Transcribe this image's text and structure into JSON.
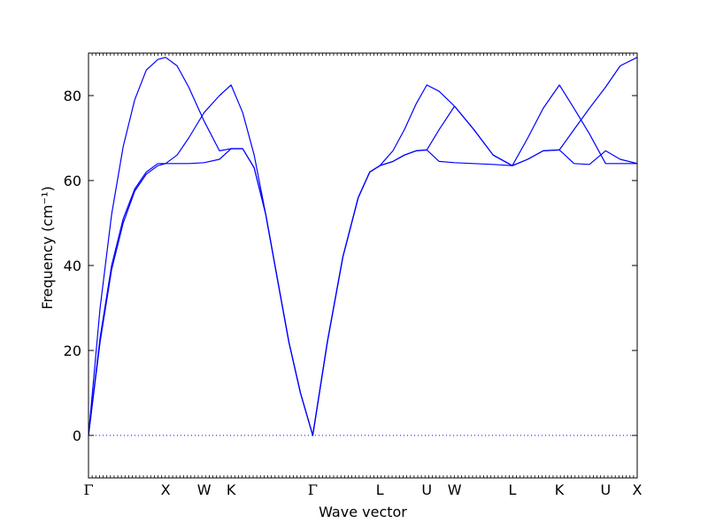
{
  "chart_data": {
    "type": "line",
    "title": "",
    "xlabel": "Wave vector",
    "ylabel": "Frequency (cm⁻¹)",
    "ylim": [
      -10,
      90
    ],
    "yticks": [
      0,
      20,
      40,
      60,
      80
    ],
    "grid": false,
    "legend": "none",
    "line_color": "#0000ff",
    "zero_line": {
      "y": 0,
      "style": "dotted",
      "color": "#0000ff"
    },
    "x_range": [
      0,
      7.12
    ],
    "high_symmetry_points": [
      {
        "label": "Γ",
        "x": 0.0
      },
      {
        "label": "X",
        "x": 1.0
      },
      {
        "label": "W",
        "x": 1.5
      },
      {
        "label": "K",
        "x": 1.85
      },
      {
        "label": "Γ",
        "x": 2.91
      },
      {
        "label": "L",
        "x": 3.78
      },
      {
        "label": "U",
        "x": 4.39
      },
      {
        "label": "W",
        "x": 4.75
      },
      {
        "label": "L",
        "x": 5.5
      },
      {
        "label": "K",
        "x": 6.11
      },
      {
        "label": "U",
        "x": 6.71
      },
      {
        "label": "X",
        "x": 7.12
      }
    ],
    "series": [
      {
        "x": [
          0,
          0.15,
          0.3,
          0.45,
          0.6,
          0.75,
          0.9,
          1.0,
          1.15,
          1.3,
          1.5,
          1.7,
          1.85,
          2.0,
          2.15,
          2.3,
          2.45,
          2.6,
          2.75,
          2.91,
          3.1,
          3.3,
          3.5,
          3.65,
          3.78,
          3.95,
          4.1,
          4.25,
          4.39,
          4.55,
          4.75,
          5.0,
          5.25,
          5.5,
          5.7,
          5.9,
          6.11,
          6.3,
          6.5,
          6.71,
          6.9,
          7.12
        ],
        "y": [
          0,
          30,
          52,
          68,
          79,
          86,
          88.5,
          89,
          87,
          82,
          74,
          67,
          67.5,
          67.5,
          63,
          52,
          37,
          22,
          10,
          0,
          22,
          42,
          56,
          62,
          63.5,
          64.5,
          66,
          67,
          67.2,
          72,
          77.5,
          72,
          66,
          63.5,
          65,
          67,
          67.2,
          64,
          63.8,
          67,
          65,
          64
        ]
      },
      {
        "x": [
          0,
          0.15,
          0.3,
          0.45,
          0.6,
          0.75,
          0.9,
          1.0,
          1.15,
          1.3,
          1.5,
          1.7,
          1.85,
          2.0,
          2.15,
          2.3,
          2.45,
          2.6,
          2.75,
          2.91,
          3.1,
          3.3,
          3.5,
          3.65,
          3.78,
          3.95,
          4.1,
          4.25,
          4.39,
          4.55,
          4.75,
          5.0,
          5.25,
          5.5,
          5.7,
          5.9,
          6.11,
          6.3,
          6.5,
          6.71,
          6.9,
          7.12
        ],
        "y": [
          0,
          23,
          40,
          51,
          58,
          62,
          64,
          64,
          64,
          64,
          64.2,
          65,
          67.5,
          67.5,
          63,
          52,
          37,
          22,
          10,
          0,
          22,
          42,
          56,
          62,
          63.5,
          64.5,
          66,
          67,
          67.2,
          64.5,
          64.2,
          64,
          63.8,
          63.5,
          65,
          67,
          67.2,
          72,
          77,
          82,
          87,
          89
        ]
      },
      {
        "x": [
          0,
          0.15,
          0.3,
          0.45,
          0.6,
          0.75,
          0.9,
          1.0,
          1.15,
          1.3,
          1.5,
          1.7,
          1.85,
          2.0,
          2.15,
          2.3,
          2.45,
          2.6,
          2.75,
          2.91,
          3.1,
          3.3,
          3.5,
          3.65,
          3.78,
          3.95,
          4.1,
          4.25,
          4.39,
          4.55,
          4.75,
          5.0,
          5.25,
          5.5,
          5.7,
          5.9,
          6.11,
          6.3,
          6.5,
          6.71,
          6.9,
          7.12
        ],
        "y": [
          0,
          22,
          39,
          50,
          57.5,
          61.5,
          63.5,
          64,
          66,
          70,
          76,
          80,
          82.5,
          76,
          66,
          52,
          37,
          22,
          10,
          0,
          22,
          42,
          56,
          62,
          63.5,
          67,
          72,
          78,
          82.5,
          81,
          77.5,
          72,
          66,
          63.5,
          70,
          77,
          82.5,
          77,
          71,
          64,
          64,
          64
        ]
      }
    ]
  }
}
